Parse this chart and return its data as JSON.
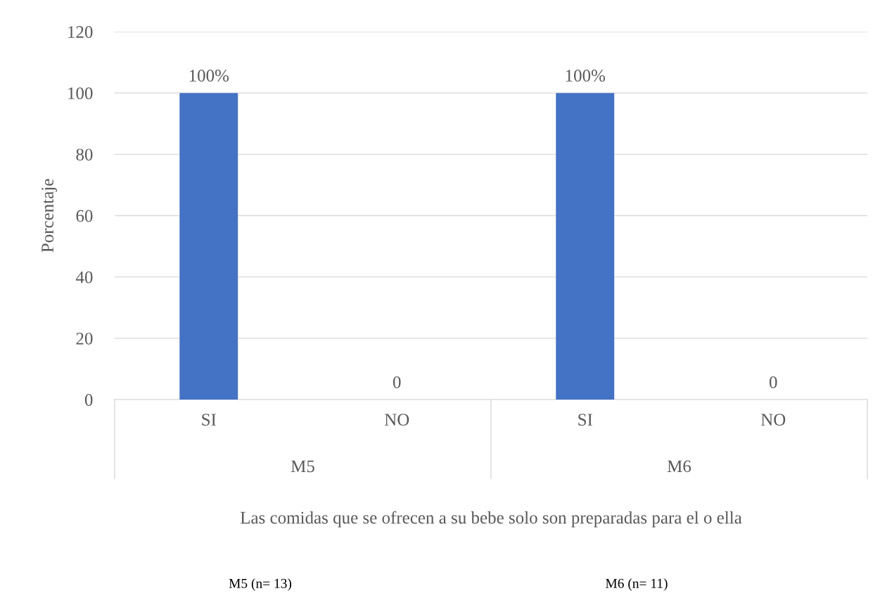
{
  "chart_data": {
    "type": "bar",
    "categories": [
      "SI",
      "NO",
      "SI",
      "NO"
    ],
    "values": [
      100,
      0,
      100,
      0
    ],
    "color": "#4472c4",
    "value_labels": [
      "100%",
      "0",
      "100%",
      "0"
    ],
    "ylabel": "Porcentaje",
    "xlabel": "Las comidas que se ofrecen a su bebe solo son preparadas para el o ella",
    "ylim": [
      0,
      120
    ],
    "yticks": [
      0,
      20,
      40,
      60,
      80,
      100,
      120
    ],
    "grid": "y",
    "annotations": [
      "M5",
      "M6",
      "M5 (n= 13)",
      "M6 (n= 11)"
    ]
  }
}
